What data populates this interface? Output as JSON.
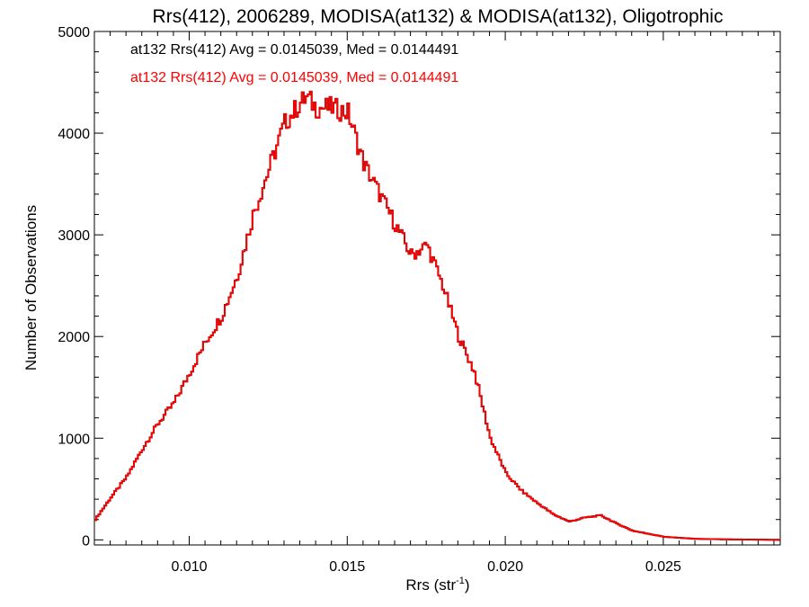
{
  "chart_data": {
    "type": "line",
    "title": "Rrs(412), 2006289, MODISA(at132) & MODISA(at132), Oligotrophic",
    "xlabel": "Rrs (str",
    "xlabel_sup": "-1",
    "xlabel_end": ")",
    "ylabel": "Number of Observations",
    "xlim": [
      0.007,
      0.0287
    ],
    "ylim": [
      -50,
      5000
    ],
    "x_ticks": [
      0.01,
      0.015,
      0.02,
      0.025
    ],
    "x_tick_labels": [
      "0.010",
      "0.015",
      "0.020",
      "0.025"
    ],
    "y_ticks": [
      0,
      1000,
      2000,
      3000,
      4000,
      5000
    ],
    "y_tick_labels": [
      "0",
      "1000",
      "2000",
      "3000",
      "4000",
      "5000"
    ],
    "annotations": [
      {
        "text": "at132 Rrs(412) Avg = 0.0145039, Med = 0.0144491",
        "color": "#000000"
      },
      {
        "text": "at132 Rrs(412) Avg = 0.0145039, Med = 0.0144491",
        "color": "#ff0000"
      }
    ],
    "series": [
      {
        "color": "#000000",
        "x": [
          0.007,
          0.0075,
          0.008,
          0.0085,
          0.009,
          0.0095,
          0.01,
          0.0105,
          0.011,
          0.0115,
          0.012,
          0.0125,
          0.013,
          0.0135,
          0.0137,
          0.014,
          0.0145,
          0.015,
          0.0155,
          0.016,
          0.0165,
          0.017,
          0.0175,
          0.018,
          0.0185,
          0.019,
          0.0195,
          0.02,
          0.0205,
          0.021,
          0.0215,
          0.022,
          0.0225,
          0.023,
          0.0235,
          0.024,
          0.0245,
          0.025,
          0.026,
          0.027,
          0.0287
        ],
        "y": [
          200,
          420,
          620,
          900,
          1150,
          1350,
          1650,
          1950,
          2200,
          2600,
          3200,
          3650,
          4100,
          4300,
          4350,
          4250,
          4250,
          4200,
          3700,
          3400,
          3100,
          2800,
          2900,
          2500,
          2000,
          1650,
          1000,
          650,
          480,
          360,
          250,
          180,
          220,
          240,
          160,
          90,
          60,
          30,
          10,
          5,
          0
        ]
      },
      {
        "color": "#ff0000",
        "x": [
          0.007,
          0.0075,
          0.008,
          0.0085,
          0.009,
          0.0095,
          0.01,
          0.0105,
          0.011,
          0.0115,
          0.012,
          0.0125,
          0.013,
          0.0135,
          0.0137,
          0.014,
          0.0145,
          0.015,
          0.0155,
          0.016,
          0.0165,
          0.017,
          0.0175,
          0.018,
          0.0185,
          0.019,
          0.0195,
          0.02,
          0.0205,
          0.021,
          0.0215,
          0.022,
          0.0225,
          0.023,
          0.0235,
          0.024,
          0.0245,
          0.025,
          0.026,
          0.027,
          0.0287
        ],
        "y": [
          200,
          420,
          620,
          900,
          1150,
          1350,
          1650,
          1950,
          2200,
          2600,
          3200,
          3650,
          4100,
          4300,
          4350,
          4250,
          4250,
          4200,
          3700,
          3400,
          3100,
          2800,
          2900,
          2500,
          2000,
          1650,
          1000,
          650,
          480,
          360,
          250,
          180,
          220,
          240,
          160,
          90,
          60,
          30,
          10,
          5,
          0
        ]
      }
    ]
  }
}
